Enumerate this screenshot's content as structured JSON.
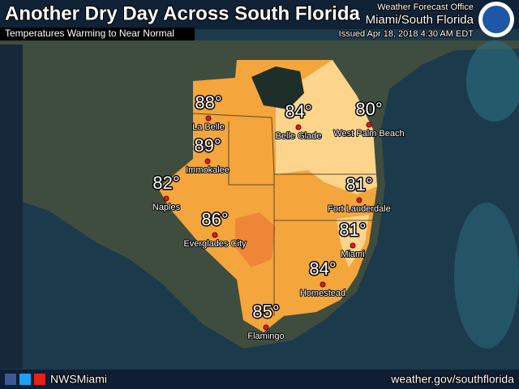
{
  "header": {
    "title": "Another Dry Day Across South Florida",
    "subtitle": "Temperatures Warming to Near Normal",
    "office": "Weather Forecast Office",
    "region": "Miami/South Florida",
    "issued": "Issued Apr 18, 2018 4:30 AM EDT"
  },
  "cities": [
    {
      "name": "La Belle",
      "temp": "88°"
    },
    {
      "name": "Belle Glade",
      "temp": "84°"
    },
    {
      "name": "West Palm Beach",
      "temp": "80°"
    },
    {
      "name": "Immokalee",
      "temp": "89°"
    },
    {
      "name": "Naples",
      "temp": "82°"
    },
    {
      "name": "Fort Lauderdale",
      "temp": "81°"
    },
    {
      "name": "Everglades City",
      "temp": "86°"
    },
    {
      "name": "Miami",
      "temp": "81°"
    },
    {
      "name": "Homestead",
      "temp": "84°"
    },
    {
      "name": "Flamingo",
      "temp": "85°"
    }
  ],
  "footer": {
    "handle": "NWSMiami",
    "url": "weather.gov/southflorida"
  }
}
